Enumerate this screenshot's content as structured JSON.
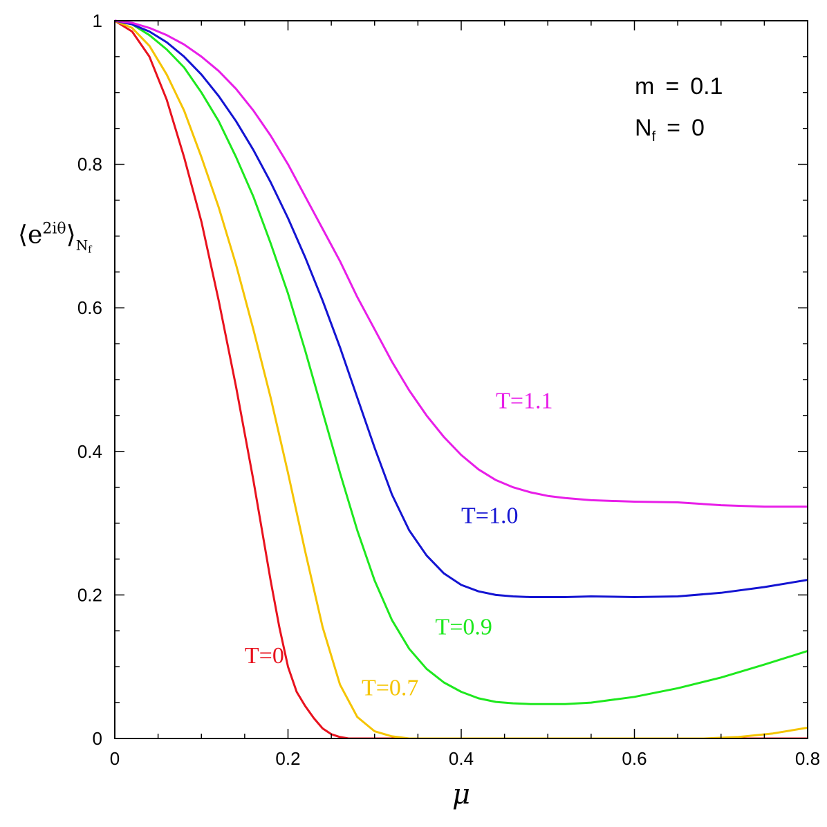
{
  "chart_data": {
    "type": "line",
    "xlim": [
      0,
      0.8
    ],
    "ylim": [
      0,
      1
    ],
    "xticks": [
      0,
      0.2,
      0.4,
      0.6,
      0.8
    ],
    "xtick_labels": [
      "0",
      "0.2",
      "0.4",
      "0.6",
      "0.8"
    ],
    "yticks": [
      0,
      0.2,
      0.4,
      0.6,
      0.8,
      1
    ],
    "ytick_labels": [
      "0",
      "0.2",
      "0.4",
      "0.6",
      "0.8",
      "1"
    ],
    "xlabel": "μ",
    "ylabel": {
      "open": "⟨",
      "base": "e",
      "sup": "2iθ",
      "close": "⟩",
      "sub": "N",
      "subsub": "f"
    },
    "params": [
      {
        "lhs": "m",
        "sub": "",
        "eq": "=",
        "rhs": "0.1"
      },
      {
        "lhs": "N",
        "sub": "f",
        "eq": "=",
        "rhs": "0"
      }
    ],
    "grid": false,
    "series": [
      {
        "name": "T=0",
        "color": "#e8121e",
        "label_at": [
          0.15,
          0.105
        ],
        "x": [
          0,
          0.02,
          0.04,
          0.06,
          0.08,
          0.1,
          0.12,
          0.14,
          0.16,
          0.18,
          0.19,
          0.2,
          0.21,
          0.22,
          0.23,
          0.24,
          0.25,
          0.26,
          0.27,
          0.8
        ],
        "y": [
          1,
          0.985,
          0.95,
          0.89,
          0.81,
          0.72,
          0.61,
          0.49,
          0.36,
          0.22,
          0.155,
          0.1,
          0.065,
          0.045,
          0.028,
          0.014,
          0.006,
          0.002,
          0,
          0
        ]
      },
      {
        "name": "T=0.7",
        "color": "#f5c400",
        "label_at": [
          0.285,
          0.06
        ],
        "x": [
          0,
          0.02,
          0.04,
          0.06,
          0.08,
          0.1,
          0.12,
          0.14,
          0.16,
          0.18,
          0.2,
          0.22,
          0.24,
          0.26,
          0.28,
          0.3,
          0.32,
          0.34,
          0.68,
          0.72,
          0.76,
          0.8
        ],
        "y": [
          1,
          0.99,
          0.965,
          0.925,
          0.875,
          0.81,
          0.74,
          0.66,
          0.57,
          0.475,
          0.37,
          0.26,
          0.155,
          0.075,
          0.03,
          0.01,
          0.003,
          0,
          0,
          0.002,
          0.007,
          0.015
        ]
      },
      {
        "name": "T=0.9",
        "color": "#1ee81e",
        "label_at": [
          0.37,
          0.145
        ],
        "x": [
          0,
          0.02,
          0.04,
          0.06,
          0.08,
          0.1,
          0.12,
          0.14,
          0.16,
          0.18,
          0.2,
          0.22,
          0.24,
          0.26,
          0.28,
          0.3,
          0.32,
          0.34,
          0.36,
          0.38,
          0.4,
          0.42,
          0.44,
          0.46,
          0.48,
          0.5,
          0.52,
          0.55,
          0.6,
          0.65,
          0.7,
          0.75,
          0.8
        ],
        "y": [
          1,
          0.995,
          0.98,
          0.96,
          0.935,
          0.9,
          0.86,
          0.81,
          0.755,
          0.69,
          0.62,
          0.54,
          0.455,
          0.37,
          0.29,
          0.22,
          0.165,
          0.125,
          0.097,
          0.078,
          0.065,
          0.056,
          0.051,
          0.049,
          0.048,
          0.048,
          0.048,
          0.05,
          0.058,
          0.07,
          0.085,
          0.103,
          0.122
        ]
      },
      {
        "name": "T=1.0",
        "color": "#1414d2",
        "label_at": [
          0.4,
          0.3
        ],
        "x": [
          0,
          0.02,
          0.04,
          0.06,
          0.08,
          0.1,
          0.12,
          0.14,
          0.16,
          0.18,
          0.2,
          0.22,
          0.24,
          0.26,
          0.28,
          0.3,
          0.32,
          0.34,
          0.36,
          0.38,
          0.4,
          0.42,
          0.44,
          0.46,
          0.48,
          0.5,
          0.52,
          0.55,
          0.6,
          0.65,
          0.7,
          0.75,
          0.8
        ],
        "y": [
          1,
          0.995,
          0.985,
          0.97,
          0.95,
          0.925,
          0.895,
          0.86,
          0.82,
          0.775,
          0.725,
          0.67,
          0.61,
          0.545,
          0.475,
          0.405,
          0.34,
          0.29,
          0.255,
          0.23,
          0.214,
          0.205,
          0.2,
          0.198,
          0.197,
          0.197,
          0.197,
          0.198,
          0.197,
          0.198,
          0.203,
          0.211,
          0.221
        ]
      },
      {
        "name": "T=1.1",
        "color": "#e81ee8",
        "label_at": [
          0.44,
          0.46
        ],
        "x": [
          0,
          0.02,
          0.04,
          0.06,
          0.08,
          0.1,
          0.12,
          0.14,
          0.16,
          0.18,
          0.2,
          0.22,
          0.24,
          0.26,
          0.28,
          0.3,
          0.32,
          0.34,
          0.36,
          0.38,
          0.4,
          0.42,
          0.44,
          0.46,
          0.48,
          0.5,
          0.52,
          0.55,
          0.6,
          0.65,
          0.7,
          0.75,
          0.8
        ],
        "y": [
          1,
          0.997,
          0.99,
          0.98,
          0.967,
          0.95,
          0.93,
          0.905,
          0.875,
          0.84,
          0.8,
          0.755,
          0.71,
          0.665,
          0.615,
          0.57,
          0.525,
          0.485,
          0.45,
          0.42,
          0.395,
          0.375,
          0.36,
          0.35,
          0.343,
          0.338,
          0.335,
          0.332,
          0.33,
          0.329,
          0.325,
          0.323,
          0.323
        ]
      }
    ]
  }
}
